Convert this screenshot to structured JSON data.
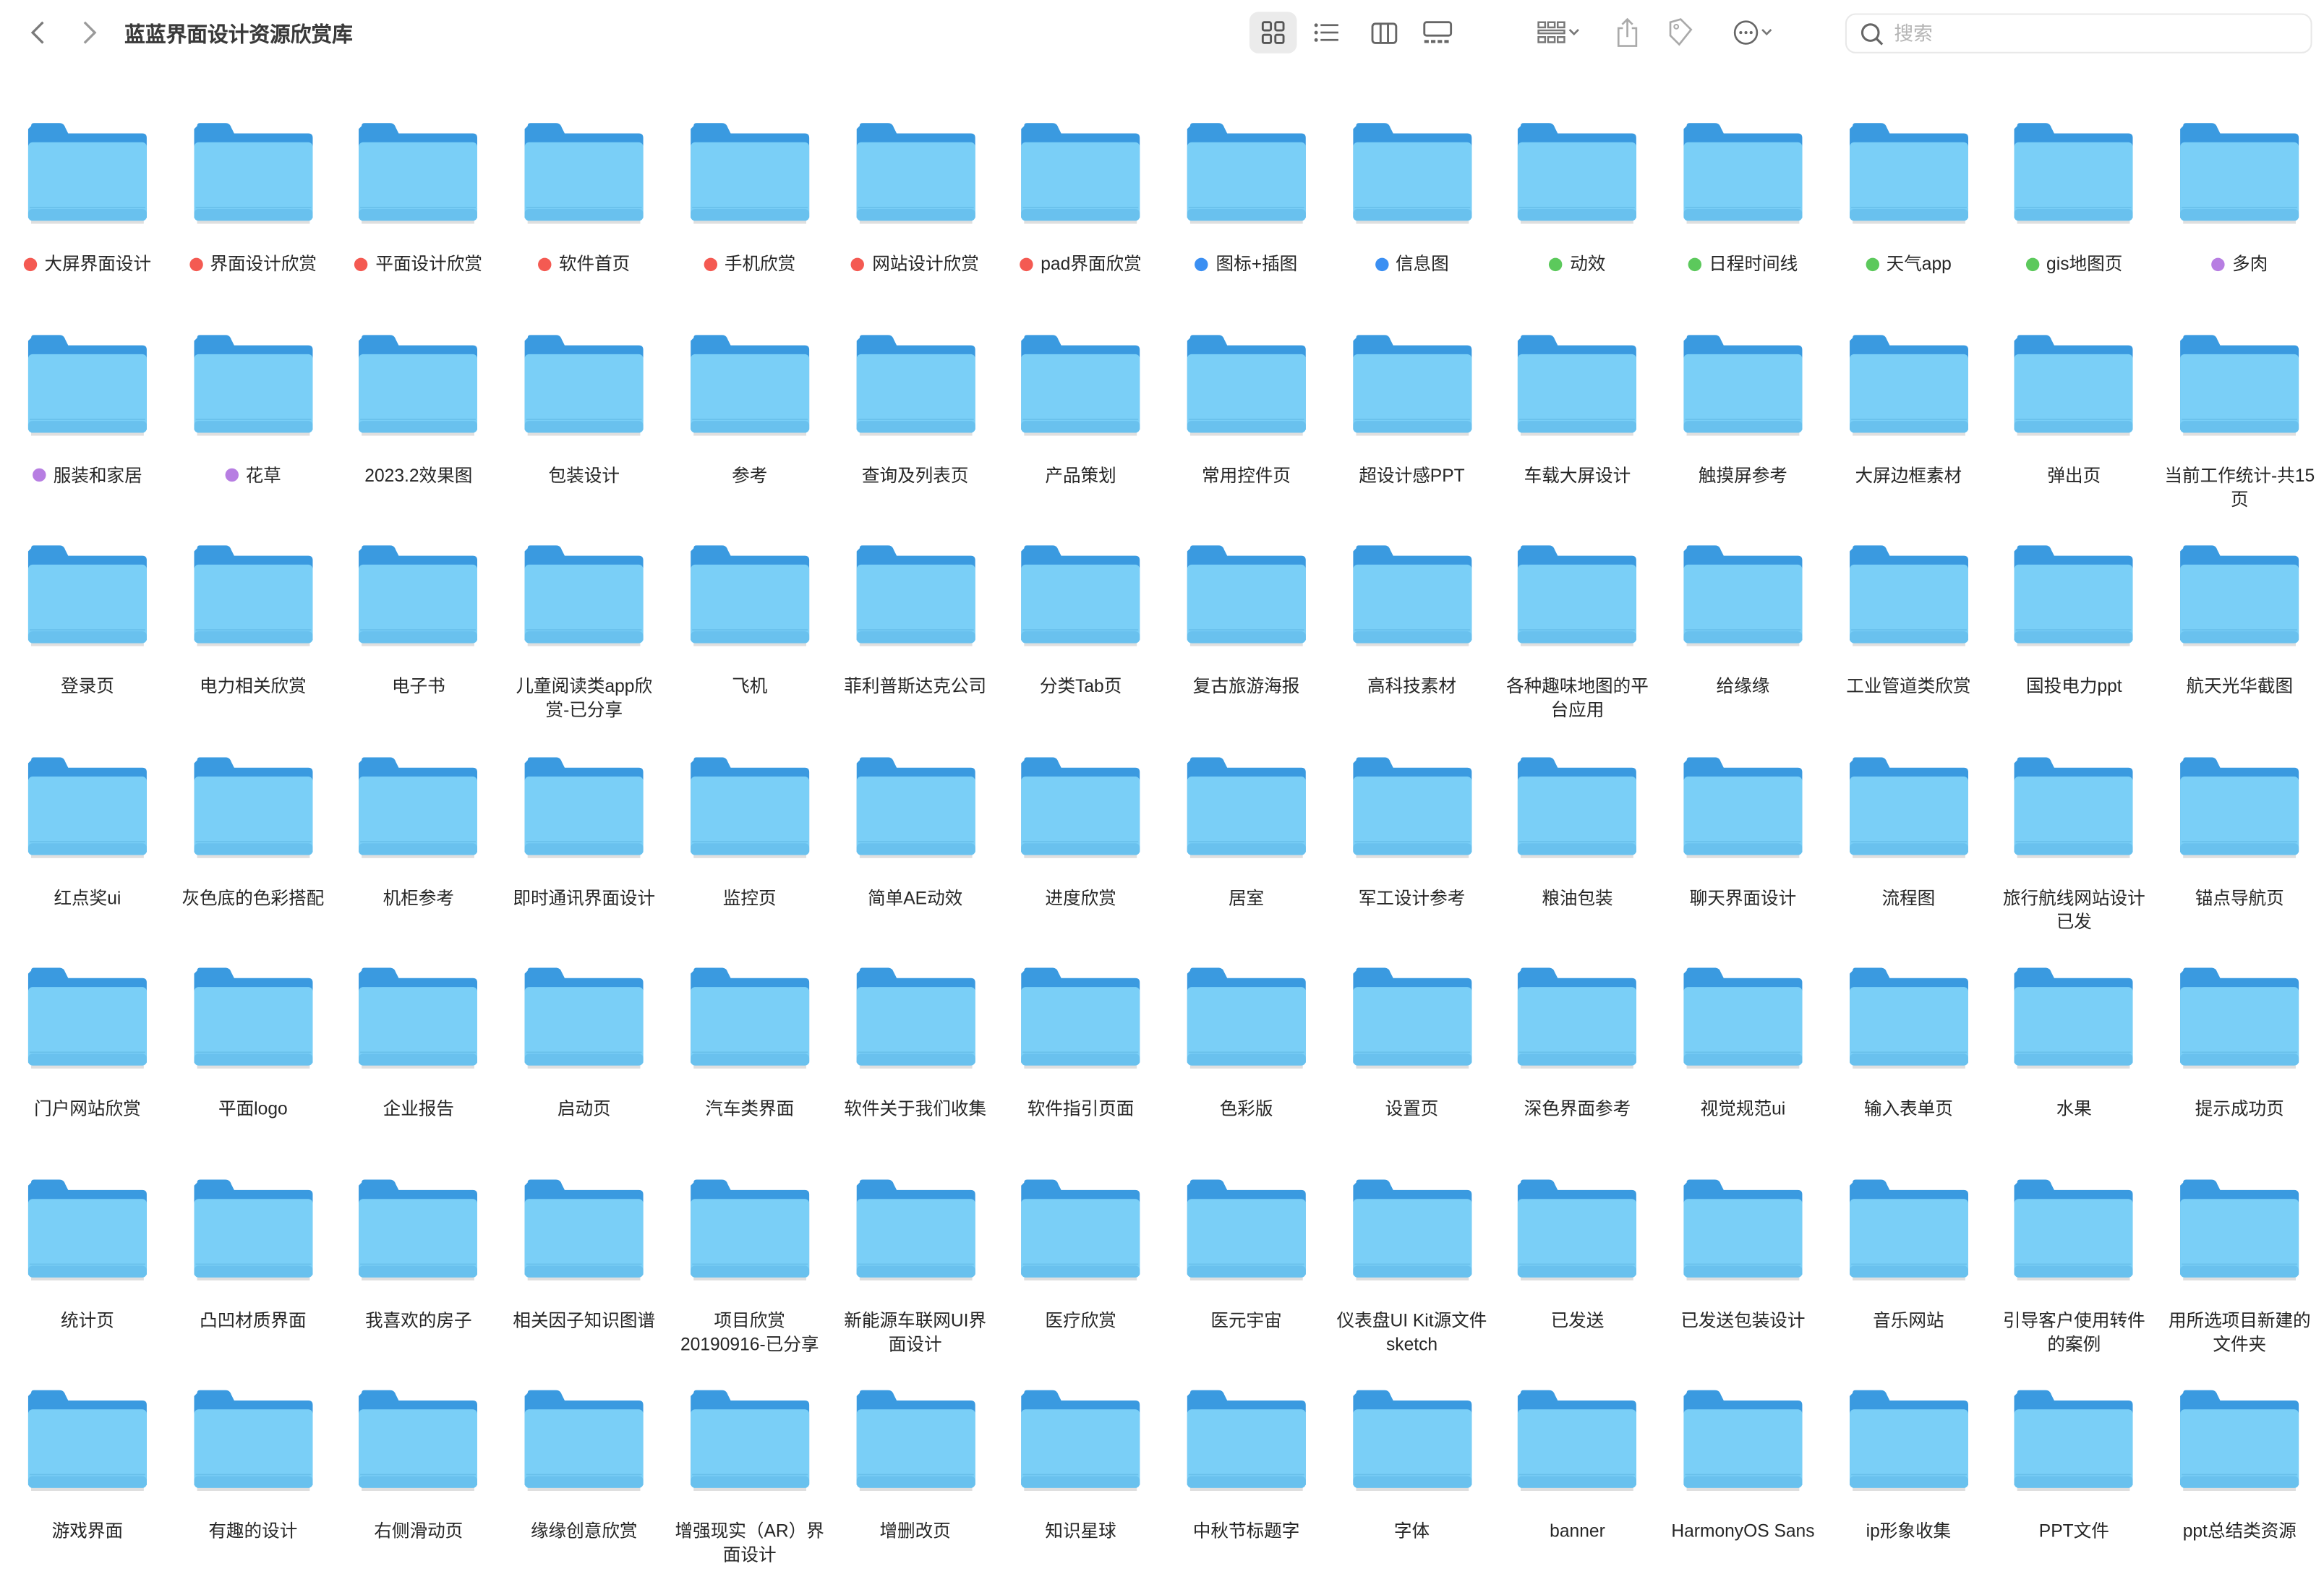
{
  "window": {
    "title": "蓝蓝界面设计资源欣赏库"
  },
  "toolbar": {
    "back_icon": "chevron-left-icon",
    "forward_icon": "chevron-right-icon",
    "view_modes": [
      "icon-view",
      "list-view",
      "column-view",
      "gallery-view"
    ],
    "selected_view": "icon-view",
    "group_icon": "group-by-icon",
    "share_icon": "share-icon",
    "tag_icon": "tag-icon",
    "more_icon": "ellipsis-circle-icon",
    "search_placeholder": "搜索"
  },
  "tag_colors": {
    "red": "#f45a52",
    "blue": "#3b8ff2",
    "green": "#5cc95c",
    "purple": "#b77ee2"
  },
  "folder_colors": {
    "back": "#3a9ae0",
    "front": "#7acff7"
  },
  "folders": [
    {
      "name": "大屏界面设计",
      "tag": "red"
    },
    {
      "name": "界面设计欣赏",
      "tag": "red"
    },
    {
      "name": "平面设计欣赏",
      "tag": "red"
    },
    {
      "name": "软件首页",
      "tag": "red"
    },
    {
      "name": "手机欣赏",
      "tag": "red"
    },
    {
      "name": "网站设计欣赏",
      "tag": "red"
    },
    {
      "name": "pad界面欣赏",
      "tag": "red"
    },
    {
      "name": "图标+插图",
      "tag": "blue"
    },
    {
      "name": "信息图",
      "tag": "blue"
    },
    {
      "name": "动效",
      "tag": "green"
    },
    {
      "name": "日程时间线",
      "tag": "green"
    },
    {
      "name": "天气app",
      "tag": "green"
    },
    {
      "name": "gis地图页",
      "tag": "green"
    },
    {
      "name": "多肉",
      "tag": "purple"
    },
    {
      "name": "服装和家居",
      "tag": "purple"
    },
    {
      "name": "花草",
      "tag": "purple"
    },
    {
      "name": "2023.2效果图"
    },
    {
      "name": "包装设计"
    },
    {
      "name": "参考"
    },
    {
      "name": "查询及列表页"
    },
    {
      "name": "产品策划"
    },
    {
      "name": "常用控件页"
    },
    {
      "name": "超设计感PPT"
    },
    {
      "name": "车载大屏设计"
    },
    {
      "name": "触摸屏参考"
    },
    {
      "name": "大屏边框素材"
    },
    {
      "name": "弹出页"
    },
    {
      "name": "当前工作统计-共15页"
    },
    {
      "name": "登录页"
    },
    {
      "name": "电力相关欣赏"
    },
    {
      "name": "电子书"
    },
    {
      "name": "儿童阅读类app欣赏-已分享"
    },
    {
      "name": "飞机"
    },
    {
      "name": "菲利普斯达克公司"
    },
    {
      "name": "分类Tab页"
    },
    {
      "name": "复古旅游海报"
    },
    {
      "name": "高科技素材"
    },
    {
      "name": "各种趣味地图的平台应用"
    },
    {
      "name": "给缘缘"
    },
    {
      "name": "工业管道类欣赏"
    },
    {
      "name": "国投电力ppt"
    },
    {
      "name": "航天光华截图"
    },
    {
      "name": "红点奖ui"
    },
    {
      "name": "灰色底的色彩搭配"
    },
    {
      "name": "机柜参考"
    },
    {
      "name": "即时通讯界面设计"
    },
    {
      "name": "监控页"
    },
    {
      "name": "简单AE动效"
    },
    {
      "name": "进度欣赏"
    },
    {
      "name": "居室"
    },
    {
      "name": "军工设计参考"
    },
    {
      "name": "粮油包装"
    },
    {
      "name": "聊天界面设计"
    },
    {
      "name": "流程图"
    },
    {
      "name": "旅行航线网站设计已发"
    },
    {
      "name": "锚点导航页"
    },
    {
      "name": "门户网站欣赏"
    },
    {
      "name": "平面logo"
    },
    {
      "name": "企业报告"
    },
    {
      "name": "启动页"
    },
    {
      "name": "汽车类界面"
    },
    {
      "name": "软件关于我们收集"
    },
    {
      "name": "软件指引页面"
    },
    {
      "name": "色彩版"
    },
    {
      "name": "设置页"
    },
    {
      "name": "深色界面参考"
    },
    {
      "name": "视觉规范ui"
    },
    {
      "name": "输入表单页"
    },
    {
      "name": "水果"
    },
    {
      "name": "提示成功页"
    },
    {
      "name": "统计页"
    },
    {
      "name": "凸凹材质界面"
    },
    {
      "name": "我喜欢的房子"
    },
    {
      "name": "相关因子知识图谱"
    },
    {
      "name": "项目欣赏20190916-已分享"
    },
    {
      "name": "新能源车联网UI界面设计"
    },
    {
      "name": "医疗欣赏"
    },
    {
      "name": "医元宇宙"
    },
    {
      "name": "仪表盘UI Kit源文件sketch"
    },
    {
      "name": "已发送"
    },
    {
      "name": "已发送包装设计"
    },
    {
      "name": "音乐网站"
    },
    {
      "name": "引导客户使用转件的案例"
    },
    {
      "name": "用所选项目新建的文件夹"
    },
    {
      "name": "游戏界面"
    },
    {
      "name": "有趣的设计"
    },
    {
      "name": "右侧滑动页"
    },
    {
      "name": "缘缘创意欣赏"
    },
    {
      "name": "增强现实（AR）界面设计"
    },
    {
      "name": "增删改页"
    },
    {
      "name": "知识星球"
    },
    {
      "name": "中秋节标题字"
    },
    {
      "name": "字体"
    },
    {
      "name": "banner"
    },
    {
      "name": "HarmonyOS Sans"
    },
    {
      "name": "ip形象收集"
    },
    {
      "name": "PPT文件"
    },
    {
      "name": "ppt总结类资源"
    }
  ]
}
